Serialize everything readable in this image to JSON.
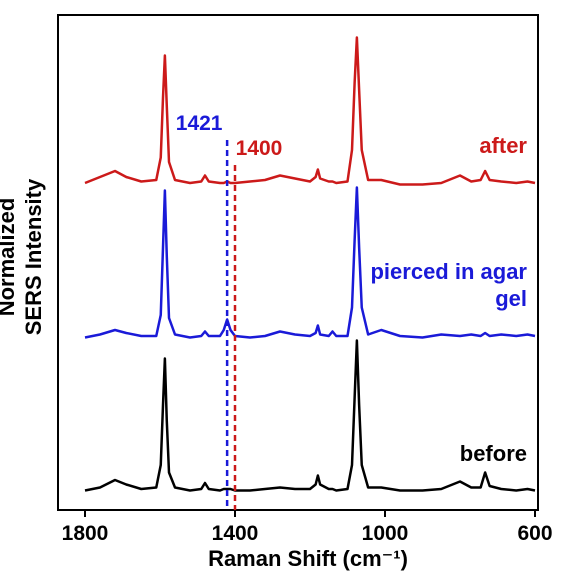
{
  "chart_data": {
    "type": "line",
    "xlabel": "Raman Shift (cm⁻¹)",
    "ylabel": "Normalized SERS Intensity",
    "xlim": [
      1872,
      592
    ],
    "ylim": [
      0,
      3.3
    ],
    "xticks": [
      1800,
      1400,
      1000,
      600
    ],
    "x": [
      1800,
      1760,
      1720,
      1690,
      1650,
      1610,
      1598,
      1592,
      1587,
      1582,
      1576,
      1560,
      1520,
      1490,
      1480,
      1470,
      1440,
      1430,
      1421,
      1412,
      1400,
      1360,
      1320,
      1280,
      1240,
      1200,
      1185,
      1179,
      1173,
      1150,
      1140,
      1130,
      1100,
      1088,
      1081,
      1075,
      1069,
      1062,
      1045,
      1010,
      960,
      900,
      850,
      800,
      770,
      745,
      733,
      721,
      690,
      650,
      620,
      600
    ],
    "series": [
      {
        "name": "before",
        "color": "#000000",
        "values": [
          0.13,
          0.15,
          0.2,
          0.17,
          0.14,
          0.15,
          0.3,
          0.7,
          1.01,
          0.6,
          0.25,
          0.15,
          0.13,
          0.14,
          0.18,
          0.14,
          0.13,
          0.14,
          0.14,
          0.14,
          0.13,
          0.13,
          0.14,
          0.15,
          0.14,
          0.14,
          0.17,
          0.23,
          0.17,
          0.14,
          0.14,
          0.13,
          0.14,
          0.3,
          0.75,
          1.13,
          0.7,
          0.3,
          0.15,
          0.15,
          0.13,
          0.13,
          0.14,
          0.19,
          0.15,
          0.15,
          0.25,
          0.16,
          0.14,
          0.13,
          0.14,
          0.13
        ]
      },
      {
        "name": "pierced in agar gel",
        "color": "#1a1ad8",
        "values": [
          1.15,
          1.17,
          1.2,
          1.18,
          1.16,
          1.16,
          1.3,
          1.75,
          2.13,
          1.7,
          1.28,
          1.17,
          1.15,
          1.16,
          1.19,
          1.16,
          1.16,
          1.2,
          1.27,
          1.2,
          1.16,
          1.15,
          1.16,
          1.19,
          1.17,
          1.16,
          1.18,
          1.23,
          1.17,
          1.16,
          1.19,
          1.16,
          1.16,
          1.35,
          1.8,
          2.15,
          1.75,
          1.35,
          1.17,
          1.2,
          1.16,
          1.15,
          1.17,
          1.16,
          1.17,
          1.16,
          1.18,
          1.16,
          1.17,
          1.16,
          1.17,
          1.16
        ]
      },
      {
        "name": "after",
        "color": "#cc1a1a",
        "values": [
          2.18,
          2.22,
          2.26,
          2.22,
          2.19,
          2.2,
          2.35,
          2.75,
          3.03,
          2.7,
          2.32,
          2.2,
          2.18,
          2.19,
          2.23,
          2.19,
          2.18,
          2.18,
          2.19,
          2.18,
          2.18,
          2.19,
          2.2,
          2.23,
          2.21,
          2.19,
          2.22,
          2.27,
          2.21,
          2.19,
          2.19,
          2.18,
          2.19,
          2.4,
          2.85,
          3.15,
          2.8,
          2.4,
          2.2,
          2.2,
          2.17,
          2.17,
          2.18,
          2.23,
          2.19,
          2.2,
          2.26,
          2.2,
          2.19,
          2.18,
          2.19,
          2.18
        ]
      }
    ],
    "annotations": [
      {
        "text": "1421",
        "x": 1421,
        "color": "#1a1ad8"
      },
      {
        "text": "1400",
        "x": 1400,
        "color": "#cc1a1a"
      }
    ]
  }
}
